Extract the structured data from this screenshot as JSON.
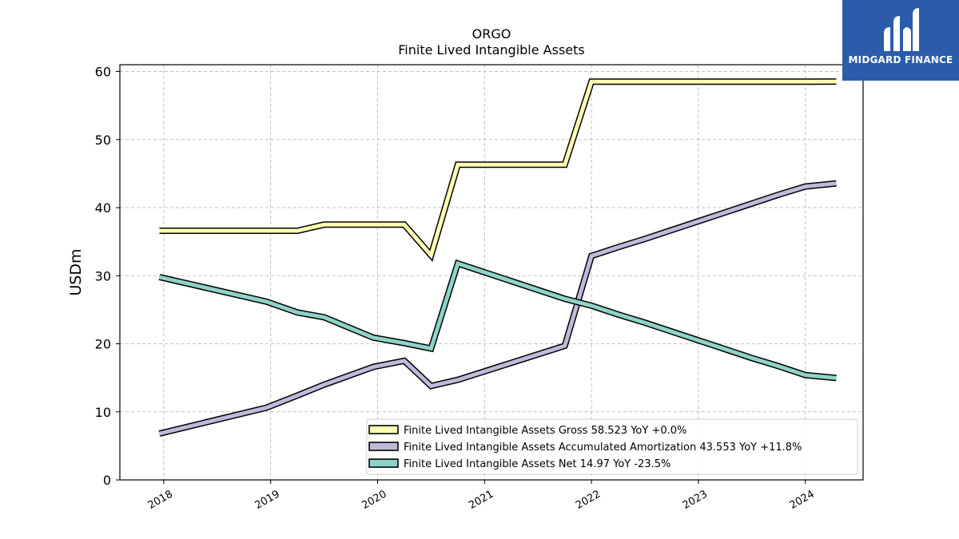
{
  "chart_data": {
    "type": "line",
    "title": "ORGO",
    "subtitle": "Finite Lived Intangible Assets",
    "ylabel": "USDm",
    "xlabel": "",
    "ylim": [
      0,
      61
    ],
    "xlim": [
      2017.59,
      2024.54
    ],
    "yticks": [
      0,
      10,
      20,
      30,
      40,
      50,
      60
    ],
    "xticks": [
      "2018",
      "2019",
      "2020",
      "2021",
      "2022",
      "2023",
      "2024"
    ],
    "grid": true,
    "legend_position": "bottom-right",
    "series": [
      {
        "name": "Finite Lived Intangible Assets Gross  58.523 YoY +0.0%",
        "color": "#ffffb3",
        "x": [
          2017.96,
          2018.96,
          2019.25,
          2019.5,
          2019.96,
          2020.25,
          2020.5,
          2020.75,
          2021.75,
          2022.0,
          2022.25,
          2022.5,
          2022.75,
          2023.0,
          2023.25,
          2023.5,
          2023.75,
          2024.0,
          2024.29
        ],
        "values": [
          36.6,
          36.6,
          36.6,
          37.5,
          37.5,
          37.5,
          33.0,
          46.3,
          46.3,
          58.5,
          58.5,
          58.5,
          58.5,
          58.5,
          58.5,
          58.5,
          58.5,
          58.5,
          58.523
        ]
      },
      {
        "name": "Finite Lived Intangible Assets Accumulated Amortization  43.553 YoY +11.8%",
        "color": "#bebada",
        "x": [
          2017.96,
          2018.96,
          2019.25,
          2019.5,
          2019.96,
          2020.25,
          2020.5,
          2020.75,
          2021.75,
          2022.0,
          2022.25,
          2022.5,
          2022.75,
          2023.0,
          2023.25,
          2023.5,
          2023.75,
          2024.0,
          2024.29
        ],
        "values": [
          6.8,
          10.6,
          12.4,
          14.0,
          16.6,
          17.5,
          13.8,
          14.7,
          19.7,
          32.9,
          34.2,
          35.4,
          36.7,
          38.0,
          39.3,
          40.6,
          41.9,
          43.1,
          43.553
        ]
      },
      {
        "name": "Finite Lived Intangible Assets Net  14.97 YoY -23.5%",
        "color": "#8dd3c7",
        "x": [
          2017.96,
          2018.96,
          2019.25,
          2019.5,
          2019.96,
          2020.25,
          2020.5,
          2020.75,
          2021.75,
          2022.0,
          2022.25,
          2022.5,
          2022.75,
          2023.0,
          2023.25,
          2023.5,
          2023.75,
          2024.0,
          2024.29
        ],
        "values": [
          29.8,
          26.2,
          24.6,
          23.9,
          20.9,
          20.1,
          19.3,
          31.8,
          26.6,
          25.6,
          24.3,
          23.1,
          21.8,
          20.5,
          19.2,
          17.9,
          16.7,
          15.4,
          14.97
        ]
      }
    ]
  },
  "logo": {
    "text": "MIDGARD FINANCE",
    "background": "#2a5caa"
  }
}
